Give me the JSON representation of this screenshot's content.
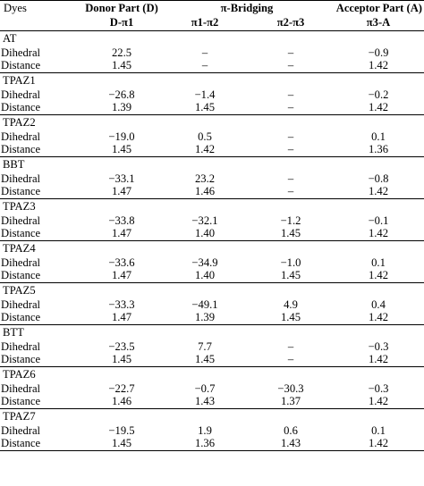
{
  "header": {
    "dyes": "Dyes",
    "donor_part": "Donor Part (D)",
    "bridging": "π-Bridging",
    "acceptor_part": "Acceptor Part (A)",
    "sub": [
      "D-π1",
      "π1-π2",
      "π2-π3",
      "π3-A"
    ]
  },
  "rows": [
    {
      "dye": "AT",
      "dihedral_label": "Dihedral",
      "distance_label": "Distance",
      "dihedral": [
        "22.5",
        "–",
        "–",
        "−0.9"
      ],
      "distance": [
        "1.45",
        "–",
        "–",
        "1.42"
      ]
    },
    {
      "dye": "TPAZ1",
      "dihedral_label": "Dihedral",
      "distance_label": "Distance",
      "dihedral": [
        "−26.8",
        "−1.4",
        "–",
        "−0.2"
      ],
      "distance": [
        "1.39",
        "1.45",
        "–",
        "1.42"
      ]
    },
    {
      "dye": "TPAZ2",
      "dihedral_label": "Dihedral",
      "distance_label": "Distance",
      "dihedral": [
        "−19.0",
        "0.5",
        "–",
        "0.1"
      ],
      "distance": [
        "1.45",
        "1.42",
        "–",
        "1.36"
      ]
    },
    {
      "dye": "BBT",
      "dihedral_label": "Dihedral",
      "distance_label": "Distance",
      "dihedral": [
        "−33.1",
        "23.2",
        "–",
        "−0.8"
      ],
      "distance": [
        "1.47",
        "1.46",
        "–",
        "1.42"
      ]
    },
    {
      "dye": "TPAZ3",
      "dihedral_label": "Dihedral",
      "distance_label": "Distance",
      "dihedral": [
        "−33.8",
        "−32.1",
        "−1.2",
        "−0.1"
      ],
      "distance": [
        "1.47",
        "1.40",
        "1.45",
        "1.42"
      ]
    },
    {
      "dye": "TPAZ4",
      "dihedral_label": "Dihedral",
      "distance_label": "Distance",
      "dihedral": [
        "−33.6",
        "−34.9",
        "−1.0",
        "0.1"
      ],
      "distance": [
        "1.47",
        "1.40",
        "1.45",
        "1.42"
      ]
    },
    {
      "dye": "TPAZ5",
      "dihedral_label": "Dihedral",
      "distance_label": "Distance",
      "dihedral": [
        "−33.3",
        "−49.1",
        "4.9",
        "0.4"
      ],
      "distance": [
        "1.47",
        "1.39",
        "1.45",
        "1.42"
      ]
    },
    {
      "dye": "BTT",
      "dihedral_label": "Dihedral",
      "distance_label": "Distance",
      "dihedral": [
        "−23.5",
        "7.7",
        "–",
        "−0.3"
      ],
      "distance": [
        "1.45",
        "1.45",
        "–",
        "1.42"
      ]
    },
    {
      "dye": "TPAZ6",
      "dihedral_label": "Dihedral",
      "distance_label": "Distance",
      "dihedral": [
        "−22.7",
        "−0.7",
        "−30.3",
        "−0.3"
      ],
      "distance": [
        "1.46",
        "1.43",
        "1.37",
        "1.42"
      ]
    },
    {
      "dye": "TPAZ7",
      "dihedral_label": "Dihedral",
      "distance_label": "Distance",
      "dihedral": [
        "−19.5",
        "1.9",
        "0.6",
        "0.1"
      ],
      "distance": [
        "1.45",
        "1.36",
        "1.43",
        "1.42"
      ]
    }
  ]
}
